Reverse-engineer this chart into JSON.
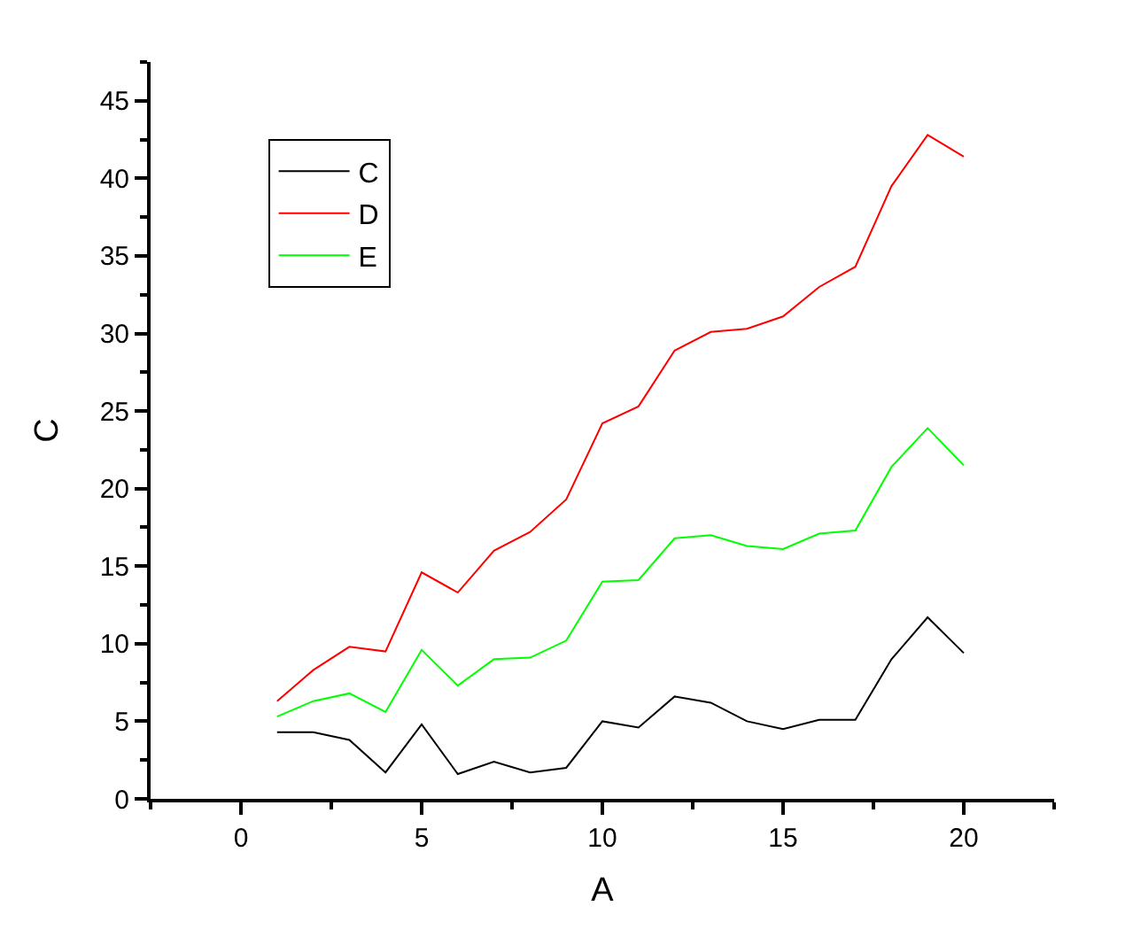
{
  "chart_data": {
    "type": "line",
    "xlabel": "A",
    "ylabel": "C",
    "x": [
      1,
      2,
      3,
      4,
      5,
      6,
      7,
      8,
      9,
      10,
      11,
      12,
      13,
      14,
      15,
      16,
      17,
      18,
      19,
      20
    ],
    "series": [
      {
        "name": "C",
        "color": "#000000",
        "values": [
          4.3,
          4.3,
          3.8,
          1.7,
          4.8,
          1.6,
          2.4,
          1.7,
          2.0,
          5.0,
          4.6,
          6.6,
          6.2,
          5.0,
          4.5,
          5.1,
          5.1,
          9.0,
          11.7,
          9.4
        ]
      },
      {
        "name": "D",
        "color": "#ff0000",
        "values": [
          6.3,
          8.3,
          9.8,
          9.5,
          14.6,
          13.3,
          16.0,
          17.2,
          19.3,
          24.2,
          25.3,
          28.9,
          30.1,
          30.3,
          31.1,
          33.0,
          34.3,
          39.5,
          42.8,
          41.4
        ]
      },
      {
        "name": "E",
        "color": "#00ff00",
        "values": [
          5.3,
          6.3,
          6.8,
          5.6,
          9.6,
          7.3,
          9.0,
          9.1,
          10.2,
          14.0,
          14.1,
          16.8,
          17.0,
          16.3,
          16.1,
          17.1,
          17.3,
          21.4,
          23.9,
          21.5
        ]
      }
    ],
    "xlim": [
      -2.5,
      22.5
    ],
    "xticks": [
      {
        "value": -2.5,
        "label": null
      },
      0,
      {
        "value": 2.5,
        "label": null
      },
      5,
      {
        "value": 7.5,
        "label": null
      },
      10,
      {
        "value": 12.5,
        "label": null
      },
      15,
      {
        "value": 17.5,
        "label": null
      },
      20,
      {
        "value": 22.5,
        "label": null
      }
    ],
    "ylim": [
      0,
      47.5
    ],
    "yticks": [
      0,
      {
        "value": 2.5,
        "label": null
      },
      5,
      {
        "value": 7.5,
        "label": null
      },
      10,
      {
        "value": 12.5,
        "label": null
      },
      15,
      {
        "value": 17.5,
        "label": null
      },
      20,
      {
        "value": 22.5,
        "label": null
      },
      25,
      {
        "value": 27.5,
        "label": null
      },
      30,
      {
        "value": 32.5,
        "label": null
      },
      35,
      {
        "value": 37.5,
        "label": null
      },
      40,
      {
        "value": 42.5,
        "label": null
      },
      45,
      {
        "value": 47.5,
        "label": null
      }
    ],
    "grid": false,
    "legend": "top left",
    "marker": "none",
    "line_style": "solid"
  }
}
